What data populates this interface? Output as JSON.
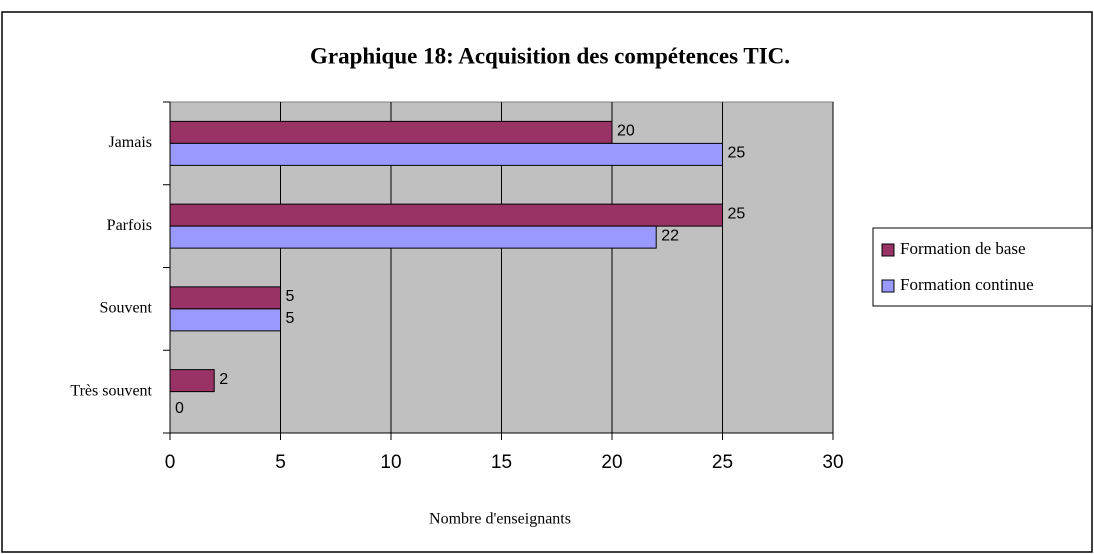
{
  "chart_data": {
    "type": "hbar",
    "title": "Graphique 18: Acquisition des compétences TIC.",
    "xlabel": "Nombre d'enseignants",
    "categories": [
      "Jamais",
      "Parfois",
      "Souvent",
      "Très souvent"
    ],
    "series": [
      {
        "name": "Formation de base",
        "color": "#993366",
        "values": [
          20,
          25,
          5,
          2
        ]
      },
      {
        "name": "Formation continue",
        "color": "#9999ff",
        "values": [
          25,
          22,
          5,
          0
        ]
      }
    ],
    "xlim": [
      0,
      30
    ],
    "xticks": [
      0,
      5,
      10,
      15,
      20,
      25,
      30
    ],
    "grid": true,
    "legend": "right",
    "plot_background": "#c0c0c0"
  }
}
